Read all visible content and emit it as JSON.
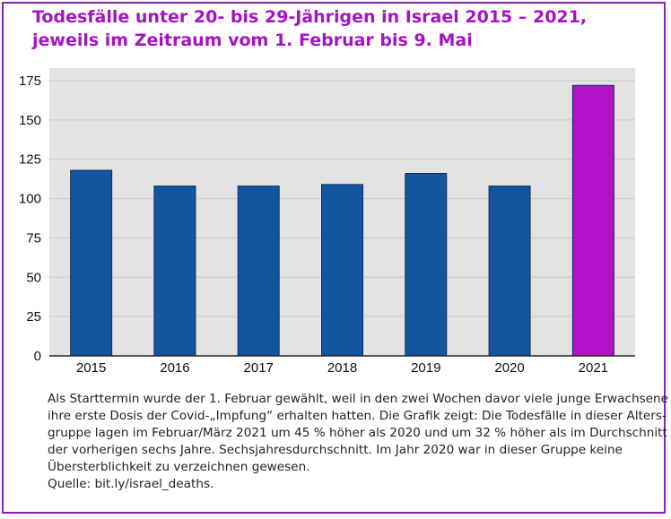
{
  "title": {
    "line1": "Todesfälle unter 20- bis 29-Jährigen in Israel 2015 – 2021,",
    "line2": "jeweils im Zeitraum vom 1. Februar bis 9. Mai"
  },
  "caption": {
    "lines": [
      "Als Starttermin wurde der 1. Februar gewählt, weil in den zwei Wochen davor viele junge Erwachsene",
      "ihre erste Dosis der Covid-„Impfung“ erhalten hatten. Die Grafik zeigt: Die Todesfälle in dieser Alters-",
      "gruppe lagen im Februar/März 2021 um 45 % höher als 2020 und um 32 % höher als im Durchschnitt",
      "der vorherigen sechs Jahre. Sechsjahresdurchschnitt. Im Jahr 2020 war in dieser Gruppe keine",
      "Übersterblichkeit zu verzeichnen gewesen.",
      "Quelle: bit.ly/israel_deaths."
    ]
  },
  "colors": {
    "accent": "#a414c2",
    "bar_default": "#1455a0",
    "bar_highlight": "#b312c8",
    "plot_background": "#e3e3e3",
    "gridline": "#c8c8c8"
  },
  "chart_data": {
    "type": "bar",
    "categories": [
      "2015",
      "2016",
      "2017",
      "2018",
      "2019",
      "2020",
      "2021"
    ],
    "values": [
      118,
      108,
      108,
      109,
      116,
      108,
      172
    ],
    "highlight_category": "2021",
    "yticks": [
      0,
      25,
      50,
      75,
      100,
      125,
      150,
      175
    ],
    "ylim": [
      0,
      183
    ],
    "grid": true,
    "legend": "none",
    "xlabel": "",
    "ylabel": ""
  }
}
